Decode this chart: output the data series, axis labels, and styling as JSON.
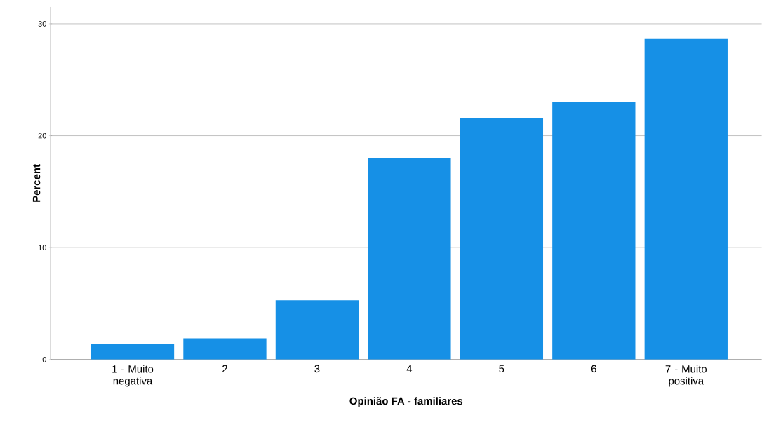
{
  "chart_data": {
    "type": "bar",
    "xlabel": "Opinião FA - familiares",
    "ylabel": "Percent",
    "categories": [
      "1 - Muito negativa",
      "2",
      "3",
      "4",
      "5",
      "6",
      "7 - Muito positiva"
    ],
    "values": [
      1.4,
      1.9,
      5.3,
      18.0,
      21.6,
      23.0,
      28.7
    ],
    "color": "#1690e6",
    "ylim": [
      0,
      31.5
    ],
    "yticks": [
      0,
      10,
      20,
      30
    ],
    "grid": "y"
  }
}
